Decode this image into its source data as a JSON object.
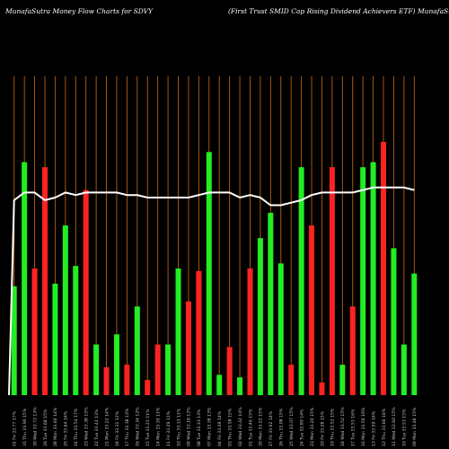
{
  "header": {
    "left": "MunafaSutra  Money Flow  Charts for SDVY",
    "right": "(First Trust SMID Cap Rising Dividend Achievers ETF) MunafaSutra.com"
  },
  "colors": {
    "background": "#000000",
    "grid": "#b8620f",
    "up": "#22ee22",
    "down": "#ff2222",
    "line": "#ffffff"
  },
  "chart_data": {
    "type": "bar",
    "title": "MunafaSutra  Money Flow  Charts for SDVY",
    "subtitle": "(First Trust SMID Cap Rising Dividend Achievers ETF) MunafaSutra.com",
    "ylim": [
      0,
      100
    ],
    "grid": true,
    "categories": [
      "01 Fri 33.77 17%",
      "31 Thu 33.90 15%",
      "30 Wed 33.72 13%",
      "29 Tue 33.68 15%",
      "28 Mon 33.60 14%",
      "25 Fri 33.64 16%",
      "24 Thu 33.54 17%",
      "23 Wed 33.38 15%",
      "22 Tue 33.42 13%",
      "21 Mon 33.22 14%",
      "18 Fri 33.31 12%",
      "17 Thu 33.38 13%",
      "16 Wed 33.34 12%",
      "15 Tue 33.22 11%",
      "14 Mon 33.30 11%",
      "11 Fri 33.29 11%",
      "10 Thu 33.13 11%",
      "09 Wed 33.18 12%",
      "08 Tue 33.33 13%",
      "07 Mon 33.38 13%",
      "04 Fri 33.49 14%",
      "03 Thu 33.58 15%",
      "02 Wed 33.42 14%",
      "01 Tue 33.46 15%",
      "30 Mon 33.22 15%",
      "27 Fri 33.02 14%",
      "26 Thu 33.08 15%",
      "25 Wed 33.07 15%",
      "24 Tue 32.89 14%",
      "23 Mon 33.20 15%",
      "20 Fri 33.28 15%",
      "19 Thu 33.52 15%",
      "18 Wed 33.52 15%",
      "17 Tue 33.53 16%",
      "16 Mon 33.56 16%",
      "13 Fri 33.59 16%",
      "12 Thu 33.66 16%",
      "11 Wed 33.60 15%",
      "10 Tue 33.53 15%",
      "09 Mon 33.48 15%"
    ],
    "series": [
      {
        "type": "bar",
        "colors": [
          "up",
          "up",
          "down",
          "down",
          "up",
          "up",
          "up",
          "down",
          "up",
          "down",
          "up",
          "down",
          "up",
          "down",
          "down",
          "up",
          "up",
          "down",
          "down",
          "up",
          "up",
          "down",
          "up",
          "down",
          "up",
          "up",
          "up",
          "down",
          "up",
          "down",
          "down",
          "down",
          "up",
          "down",
          "up",
          "up",
          "down",
          "up",
          "up",
          "up"
        ],
        "values": [
          43,
          92,
          50,
          90,
          44,
          67,
          51,
          81,
          20,
          11,
          24,
          12,
          35,
          6,
          20,
          20,
          50,
          37,
          49,
          96,
          8,
          19,
          7,
          50,
          62,
          72,
          52,
          12,
          90,
          67,
          5,
          90,
          12,
          35,
          90,
          92,
          100,
          58,
          20,
          48
        ]
      },
      {
        "type": "line",
        "values": [
          77,
          80,
          80,
          77,
          78,
          80,
          79,
          80,
          80,
          80,
          80,
          79,
          79,
          78,
          78,
          78,
          78,
          78,
          79,
          80,
          80,
          80,
          78,
          79,
          78,
          75,
          75,
          76,
          77,
          79,
          80,
          80,
          80,
          80,
          81,
          82,
          82,
          82,
          82,
          81
        ]
      }
    ]
  }
}
